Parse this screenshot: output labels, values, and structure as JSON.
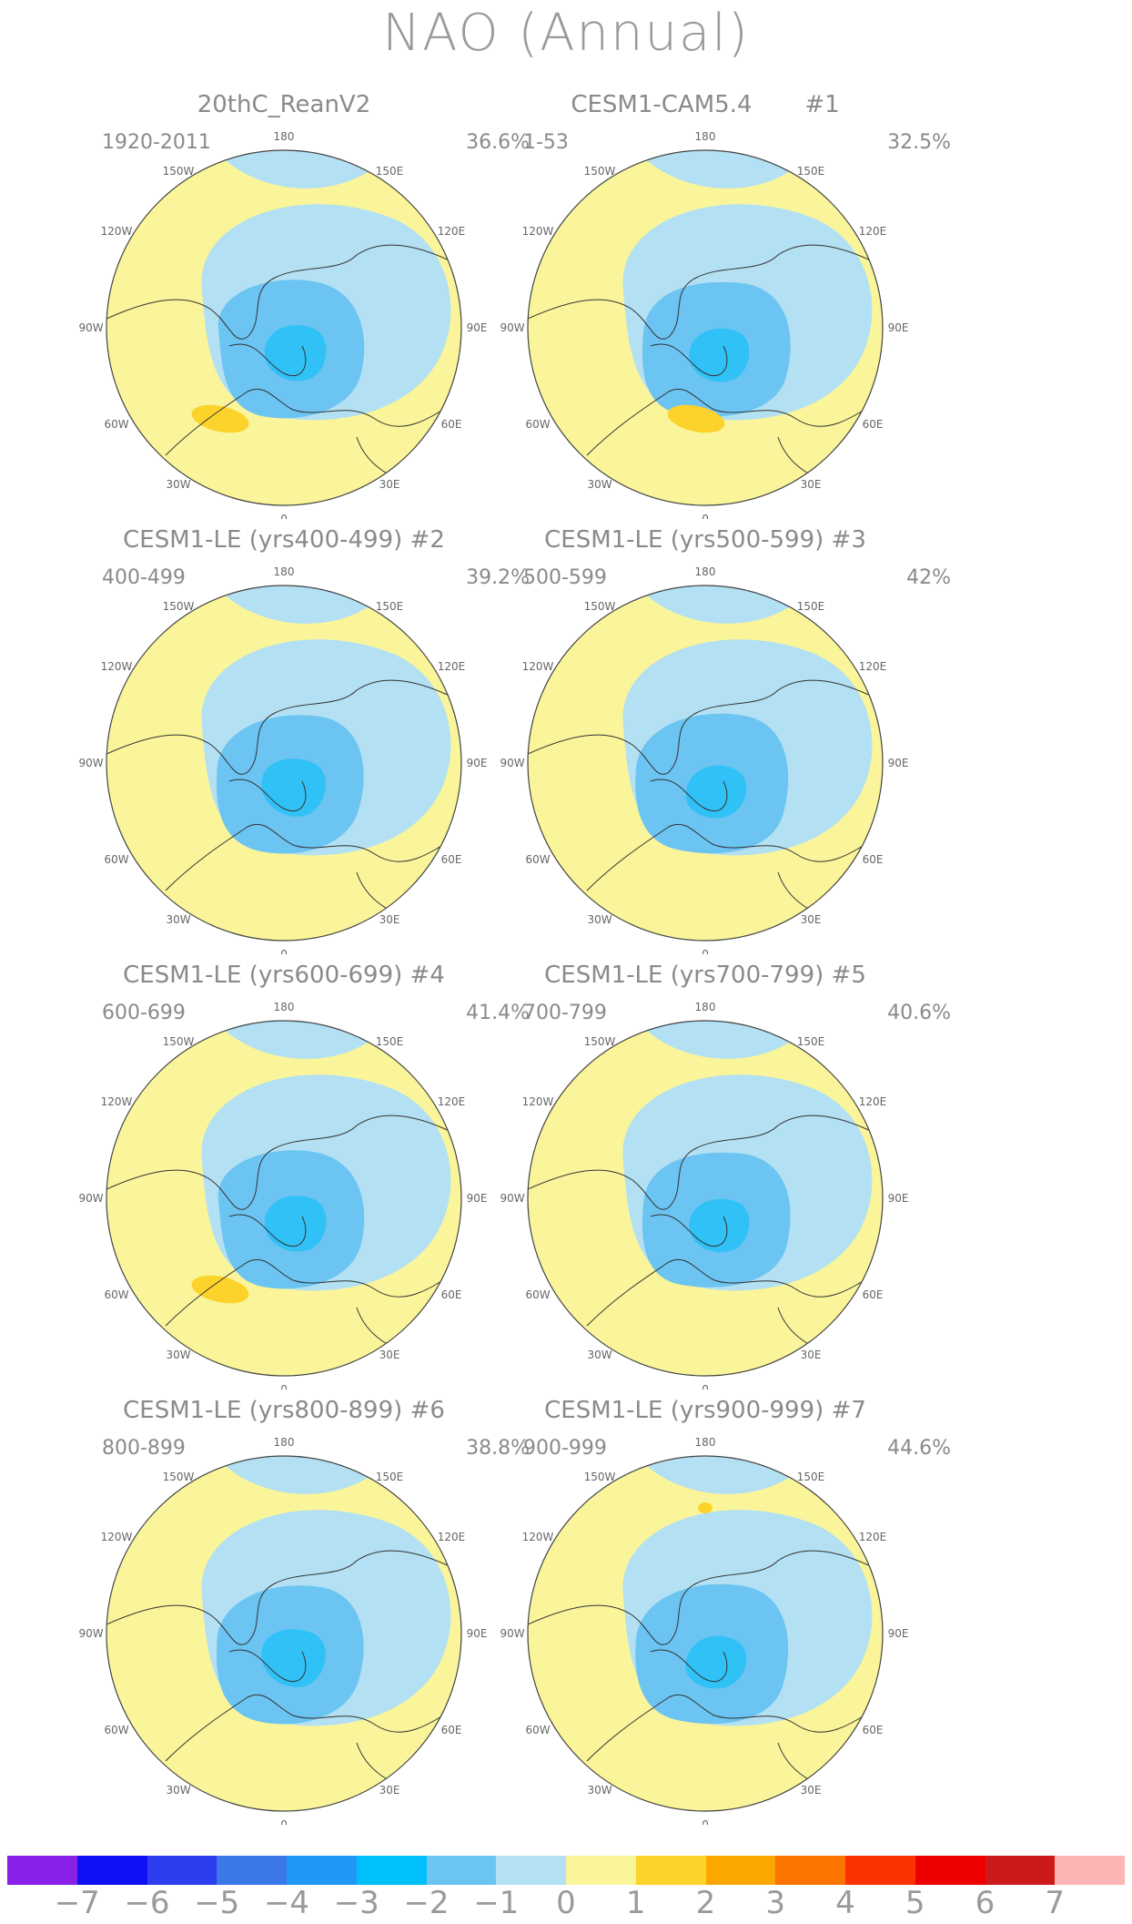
{
  "title": "NAO (Annual)",
  "lon_labels": [
    "180",
    "150E",
    "120E",
    "90E",
    "60E",
    "30E",
    "0",
    "30W",
    "60W",
    "90W",
    "120W",
    "150W"
  ],
  "panels": [
    {
      "title": "20thC_ReanV2",
      "years": "1920-2011",
      "pct": "36.6%"
    },
    {
      "title": "CESM1-CAM5.4       #1",
      "years": "1-53",
      "pct": "32.5%"
    },
    {
      "title": "CESM1-LE (yrs400-499) #2",
      "years": "400-499",
      "pct": "39.2%"
    },
    {
      "title": "CESM1-LE (yrs500-599) #3",
      "years": "500-599",
      "pct": "42%"
    },
    {
      "title": "CESM1-LE (yrs600-699) #4",
      "years": "600-699",
      "pct": "41.4%"
    },
    {
      "title": "CESM1-LE (yrs700-799) #5",
      "years": "700-799",
      "pct": "40.6%"
    },
    {
      "title": "CESM1-LE (yrs800-899) #6",
      "years": "800-899",
      "pct": "38.8%"
    },
    {
      "title": "CESM1-LE (yrs900-999) #7",
      "years": "900-999",
      "pct": "44.6%"
    }
  ],
  "colorbar": {
    "labels": [
      "−7",
      "−6",
      "−5",
      "−4",
      "−3",
      "−2",
      "−1",
      "0",
      "1",
      "2",
      "3",
      "4",
      "5",
      "6",
      "7"
    ],
    "colors": [
      "#8a1fe8",
      "#1010f5",
      "#2d3ef0",
      "#3a78e8",
      "#1f98f7",
      "#00c0fa",
      "#6cc4f2",
      "#b3e0f2",
      "#faf59a",
      "#fcd32a",
      "#fca600",
      "#fc7400",
      "#fc3200",
      "#ee0000",
      "#cc1a1a",
      "#fcb4b4"
    ]
  },
  "colors": {
    "neg1": "#b3e0f2",
    "neg2": "#6cc4f2",
    "neg3": "#00c0fa",
    "pos1": "#faf59a",
    "pos2": "#fcd32a"
  }
}
